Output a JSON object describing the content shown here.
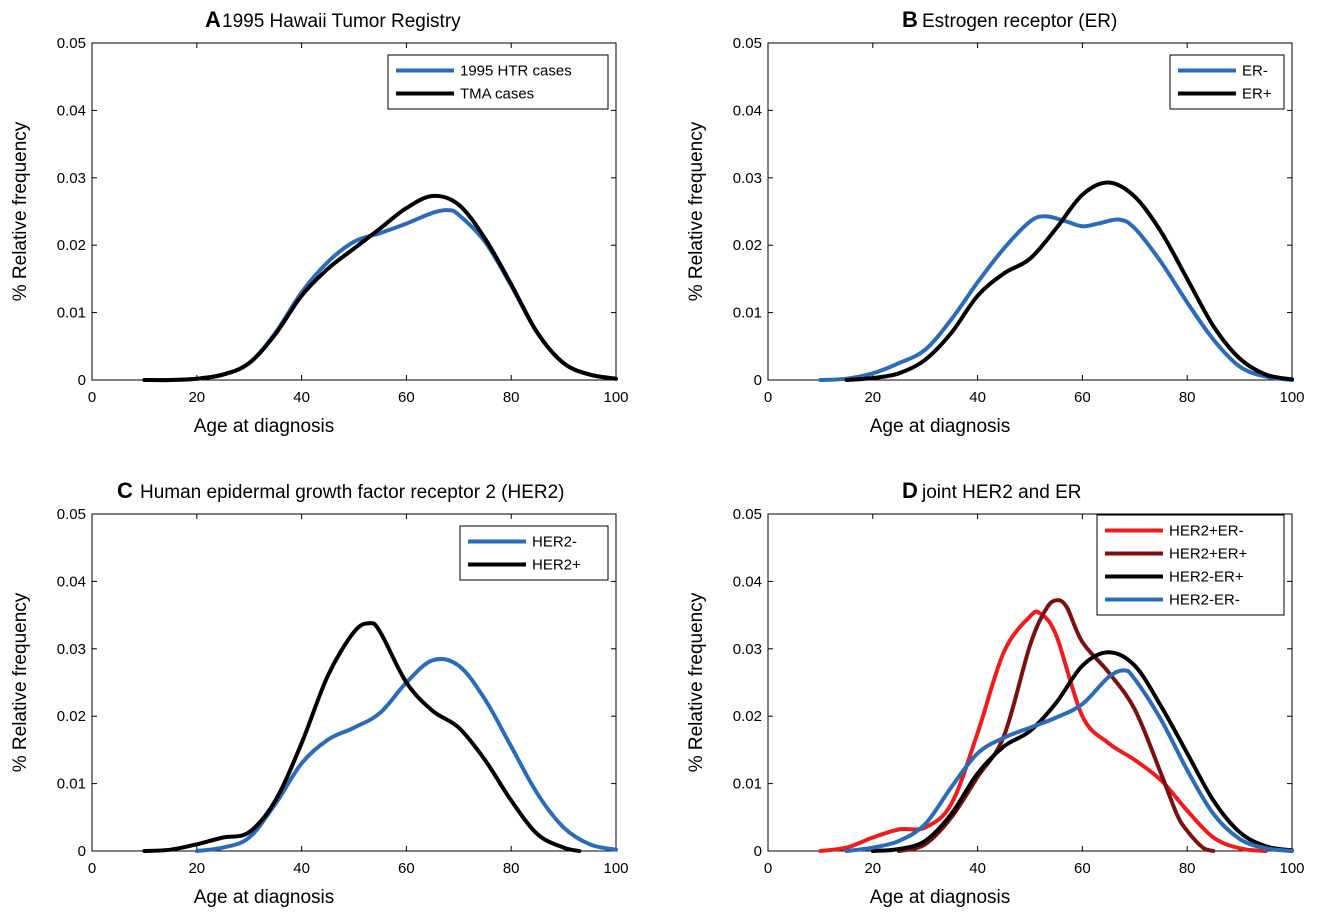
{
  "chart_data": [
    {
      "type": "line",
      "panel": "A",
      "title": "1995 Hawaii Tumor Registry",
      "xlabel": "Age at diagnosis",
      "ylabel": "% Relative frequency",
      "xlim": [
        0,
        100
      ],
      "ylim": [
        0,
        0.05
      ],
      "xticks": [
        "0",
        "20",
        "40",
        "60",
        "80",
        "100"
      ],
      "yticks": [
        "0",
        "0.01",
        "0.02",
        "0.03",
        "0.04",
        "0.05"
      ],
      "legend_position": "top-right",
      "series": [
        {
          "name": "1995 HTR cases",
          "color": "#2b6cb8",
          "x": [
            10,
            15,
            20,
            25,
            30,
            35,
            40,
            45,
            50,
            55,
            60,
            65,
            68,
            70,
            75,
            80,
            85,
            90,
            95,
            100
          ],
          "y": [
            0,
            0,
            0.0002,
            0.0008,
            0.0025,
            0.007,
            0.013,
            0.0175,
            0.0205,
            0.0218,
            0.0232,
            0.0248,
            0.0252,
            0.0245,
            0.0205,
            0.014,
            0.007,
            0.0025,
            0.0008,
            0.0002
          ]
        },
        {
          "name": "TMA cases",
          "color": "#000000",
          "x": [
            10,
            15,
            20,
            25,
            30,
            35,
            40,
            45,
            50,
            55,
            60,
            65,
            70,
            75,
            80,
            85,
            90,
            95,
            100
          ],
          "y": [
            0,
            0,
            0.0002,
            0.0008,
            0.0025,
            0.0068,
            0.0125,
            0.0165,
            0.0195,
            0.0225,
            0.0255,
            0.0273,
            0.026,
            0.021,
            0.0142,
            0.007,
            0.0025,
            0.0008,
            0.0002
          ]
        }
      ]
    },
    {
      "type": "line",
      "panel": "B",
      "title": "Estrogen receptor (ER)",
      "xlabel": "Age at diagnosis",
      "ylabel": "% Relative frequency",
      "xlim": [
        0,
        100
      ],
      "ylim": [
        0,
        0.05
      ],
      "xticks": [
        "0",
        "20",
        "40",
        "60",
        "80",
        "100"
      ],
      "yticks": [
        "0",
        "0.01",
        "0.02",
        "0.03",
        "0.04",
        "0.05"
      ],
      "legend_position": "top-right",
      "series": [
        {
          "name": "ER-",
          "color": "#2b6cb8",
          "x": [
            10,
            15,
            20,
            25,
            30,
            35,
            40,
            45,
            50,
            53,
            57,
            60,
            63,
            67,
            70,
            75,
            80,
            85,
            90,
            95,
            100
          ],
          "y": [
            0,
            0.0002,
            0.001,
            0.0025,
            0.0045,
            0.009,
            0.0145,
            0.0195,
            0.0235,
            0.0243,
            0.0235,
            0.0228,
            0.0232,
            0.0238,
            0.0225,
            0.0175,
            0.0115,
            0.006,
            0.002,
            0.0005,
            0
          ]
        },
        {
          "name": "ER+",
          "color": "#000000",
          "x": [
            15,
            20,
            25,
            30,
            35,
            40,
            45,
            50,
            55,
            60,
            65,
            70,
            75,
            80,
            85,
            90,
            95,
            100
          ],
          "y": [
            0,
            0.0003,
            0.001,
            0.003,
            0.007,
            0.0125,
            0.0158,
            0.018,
            0.0225,
            0.0275,
            0.0293,
            0.0272,
            0.022,
            0.015,
            0.008,
            0.0032,
            0.0008,
            0.0001
          ]
        }
      ]
    },
    {
      "type": "line",
      "panel": "C",
      "title": "Human epidermal growth factor receptor 2 (HER2)",
      "xlabel": "Age at diagnosis",
      "ylabel": "% Relative frequency",
      "xlim": [
        0,
        100
      ],
      "ylim": [
        0,
        0.05
      ],
      "xticks": [
        "0",
        "20",
        "40",
        "60",
        "80",
        "100"
      ],
      "yticks": [
        "0",
        "0.01",
        "0.02",
        "0.03",
        "0.04",
        "0.05"
      ],
      "legend_position": "top-right",
      "series": [
        {
          "name": "HER2-",
          "color": "#2b6cb8",
          "x": [
            20,
            25,
            30,
            35,
            40,
            45,
            50,
            55,
            60,
            65,
            70,
            75,
            80,
            85,
            90,
            95,
            100
          ],
          "y": [
            0,
            0.0005,
            0.002,
            0.007,
            0.013,
            0.0165,
            0.0183,
            0.0205,
            0.025,
            0.0283,
            0.0275,
            0.0225,
            0.0155,
            0.0085,
            0.0035,
            0.001,
            0.0002
          ]
        },
        {
          "name": "HER2+",
          "color": "#000000",
          "x": [
            10,
            15,
            20,
            25,
            30,
            35,
            40,
            45,
            50,
            53,
            55,
            60,
            65,
            70,
            75,
            80,
            85,
            90,
            93
          ],
          "y": [
            0,
            0.0002,
            0.001,
            0.002,
            0.0028,
            0.0075,
            0.016,
            0.026,
            0.0325,
            0.0338,
            0.0325,
            0.025,
            0.0208,
            0.0183,
            0.0135,
            0.0075,
            0.0025,
            0.0005,
            0
          ]
        }
      ]
    },
    {
      "type": "line",
      "panel": "D",
      "title": "joint HER2 and ER",
      "xlabel": "Age at diagnosis",
      "ylabel": "% Relative frequency",
      "xlim": [
        0,
        100
      ],
      "ylim": [
        0,
        0.05
      ],
      "xticks": [
        "0",
        "20",
        "40",
        "60",
        "80",
        "100"
      ],
      "yticks": [
        "0",
        "0.01",
        "0.02",
        "0.03",
        "0.04",
        "0.05"
      ],
      "legend_position": "top-right",
      "series": [
        {
          "name": "HER2+ER-",
          "color": "#ee1c1c",
          "x": [
            10,
            15,
            20,
            25,
            30,
            35,
            40,
            45,
            50,
            52,
            55,
            60,
            65,
            70,
            75,
            80,
            85,
            90,
            95
          ],
          "y": [
            0,
            0.0005,
            0.002,
            0.0032,
            0.0035,
            0.007,
            0.0175,
            0.0295,
            0.0348,
            0.0352,
            0.032,
            0.02,
            0.016,
            0.0135,
            0.0105,
            0.006,
            0.002,
            0.0004,
            0
          ]
        },
        {
          "name": "HER2+ER+",
          "color": "#7a1010",
          "x": [
            25,
            30,
            35,
            40,
            45,
            50,
            53,
            55,
            57,
            60,
            65,
            70,
            75,
            78,
            80,
            83,
            85
          ],
          "y": [
            0,
            0.001,
            0.005,
            0.011,
            0.017,
            0.0305,
            0.0358,
            0.0372,
            0.0362,
            0.031,
            0.0265,
            0.021,
            0.0115,
            0.0055,
            0.003,
            0.0005,
            0
          ]
        },
        {
          "name": "HER2-ER+",
          "color": "#000000",
          "x": [
            20,
            25,
            30,
            35,
            40,
            45,
            50,
            55,
            60,
            65,
            70,
            75,
            80,
            85,
            90,
            95,
            100
          ],
          "y": [
            0,
            0.0003,
            0.0015,
            0.0055,
            0.0115,
            0.0155,
            0.0178,
            0.022,
            0.0275,
            0.0295,
            0.0275,
            0.0215,
            0.0145,
            0.0075,
            0.0028,
            0.0007,
            0.0001
          ]
        },
        {
          "name": "HER2-ER-",
          "color": "#2b6cb8",
          "x": [
            15,
            20,
            25,
            30,
            35,
            40,
            45,
            50,
            55,
            60,
            65,
            68,
            70,
            75,
            80,
            85,
            90,
            95,
            100
          ],
          "y": [
            0,
            0.0005,
            0.0015,
            0.004,
            0.0095,
            0.0145,
            0.0168,
            0.0183,
            0.0198,
            0.0218,
            0.0258,
            0.0268,
            0.0255,
            0.0195,
            0.012,
            0.0055,
            0.0018,
            0.0004,
            0
          ]
        }
      ]
    }
  ]
}
